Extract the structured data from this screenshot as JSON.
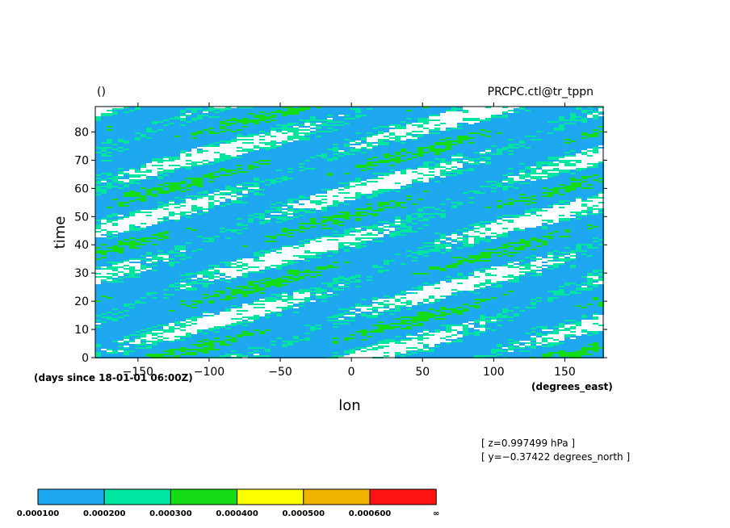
{
  "chart_data": {
    "type": "heatmap",
    "title_left": "()",
    "title_right": "PRCPC.ctl@tr_tppn",
    "xlabel": "lon",
    "xlabel_units": "(degrees_east)",
    "ylabel": "time",
    "ylabel_units": "(days since 18-01-01 06:00Z)",
    "xlim": [
      -180,
      177
    ],
    "ylim": [
      0,
      89
    ],
    "xticks": [
      -150,
      -100,
      -50,
      0,
      50,
      100,
      150
    ],
    "xtick_labels": [
      "−150",
      "−100",
      "−50",
      "0",
      "50",
      "100",
      "150"
    ],
    "yticks": [
      0,
      10,
      20,
      30,
      40,
      50,
      60,
      70,
      80
    ],
    "ytick_labels": [
      "0",
      "10",
      "20",
      "30",
      "40",
      "50",
      "60",
      "70",
      "80"
    ],
    "annotations": [
      "[ z=0.997499 hPa ]",
      "[ y=−0.37422 degrees_north ]"
    ],
    "colorbar": {
      "levels": [
        "0.000100",
        "0.000200",
        "0.000300",
        "0.000400",
        "0.000500",
        "0.000600",
        "∞"
      ],
      "colors": [
        "#1ea8f0",
        "#00e6a0",
        "#14dc14",
        "#ffff00",
        "#f0b400",
        "#ff1414"
      ]
    },
    "background_color": "#ffffff"
  }
}
